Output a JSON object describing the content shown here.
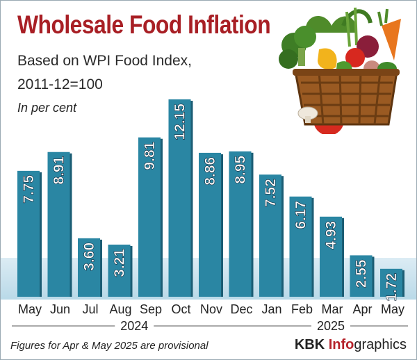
{
  "header": {
    "title": "Wholesale Food Inflation",
    "subtitle_line1": "Based on WPI Food Index,",
    "subtitle_line2": "2011-12=100",
    "unit": "In per cent"
  },
  "illustration": {
    "name": "vegetable-basket-illustration"
  },
  "chart_data": {
    "type": "bar",
    "title": "Wholesale Food Inflation",
    "subtitle": "Based on WPI Food Index, 2011-12=100",
    "ylabel": "In per cent",
    "categories": [
      "May",
      "Jun",
      "Jul",
      "Aug",
      "Sep",
      "Oct",
      "Nov",
      "Dec",
      "Jan",
      "Feb",
      "Mar",
      "Apr",
      "May"
    ],
    "year_groups": [
      {
        "label": "2024",
        "from": 0,
        "to": 7
      },
      {
        "label": "2025",
        "from": 8,
        "to": 12
      }
    ],
    "values": [
      7.75,
      8.91,
      3.6,
      3.21,
      9.81,
      12.15,
      8.86,
      8.95,
      7.52,
      6.17,
      4.93,
      2.55,
      1.72
    ],
    "value_labels": [
      "7.75",
      "8.91",
      "3.60",
      "3.21",
      "9.81",
      "12.15",
      "8.86",
      "8.95",
      "7.52",
      "6.17",
      "4.93",
      "2.55",
      "1.72"
    ],
    "ylim": [
      0,
      12.15
    ],
    "grid": false,
    "bar_color": "#2a86a3"
  },
  "footer": {
    "note": "Figures for Apr & May 2025 are provisional",
    "brand_part1": "KBK ",
    "brand_part2": "Info",
    "brand_part3": "graphics"
  },
  "colors": {
    "title": "#a81f25",
    "bar": "#2a86a3",
    "bar_dark": "#1b5d74",
    "band": "#c9e2ee"
  }
}
